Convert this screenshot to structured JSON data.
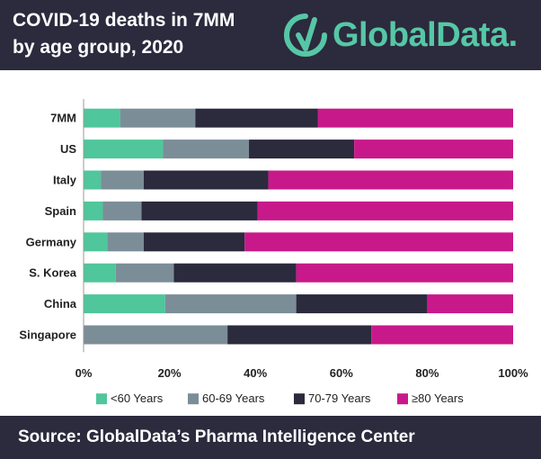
{
  "header": {
    "title_line1": "COVID-19 deaths in 7MM",
    "title_line2": "by age group, 2020",
    "brand": "GlobalData.",
    "brand_color": "#56c7a6",
    "logo_icon": "globaldata-logo-icon"
  },
  "footer": {
    "source": "Source:  GlobalData’s Pharma Intelligence Center"
  },
  "chart_data": {
    "type": "bar",
    "orientation": "horizontal",
    "stacked": "percent",
    "title": "COVID-19 deaths in 7MM by age group, 2020",
    "categories": [
      "7MM",
      "US",
      "Italy",
      "Spain",
      "Germany",
      "S. Korea",
      "China",
      "Singapore"
    ],
    "series": [
      {
        "name": "<60 Years",
        "color": "#4fc69b",
        "values": [
          8.5,
          18.5,
          4.0,
          4.5,
          5.5,
          7.5,
          19.0,
          0.0
        ]
      },
      {
        "name": "60-69 Years",
        "color": "#7b8e98",
        "values": [
          17.5,
          20.0,
          10.0,
          9.0,
          8.5,
          13.5,
          30.5,
          33.5
        ]
      },
      {
        "name": "70-79 Years",
        "color": "#2c2a3d",
        "values": [
          28.5,
          24.5,
          29.0,
          27.0,
          23.5,
          28.5,
          30.5,
          33.5
        ]
      },
      {
        "name": "≥80 Years",
        "color": "#c8198a",
        "values": [
          45.5,
          37.0,
          57.0,
          59.5,
          62.5,
          50.5,
          20.0,
          33.0
        ]
      }
    ],
    "xlim": [
      0,
      100
    ],
    "xticks": [
      "0%",
      "20%",
      "40%",
      "60%",
      "80%",
      "100%"
    ],
    "legend": "bottom",
    "grid": false
  }
}
